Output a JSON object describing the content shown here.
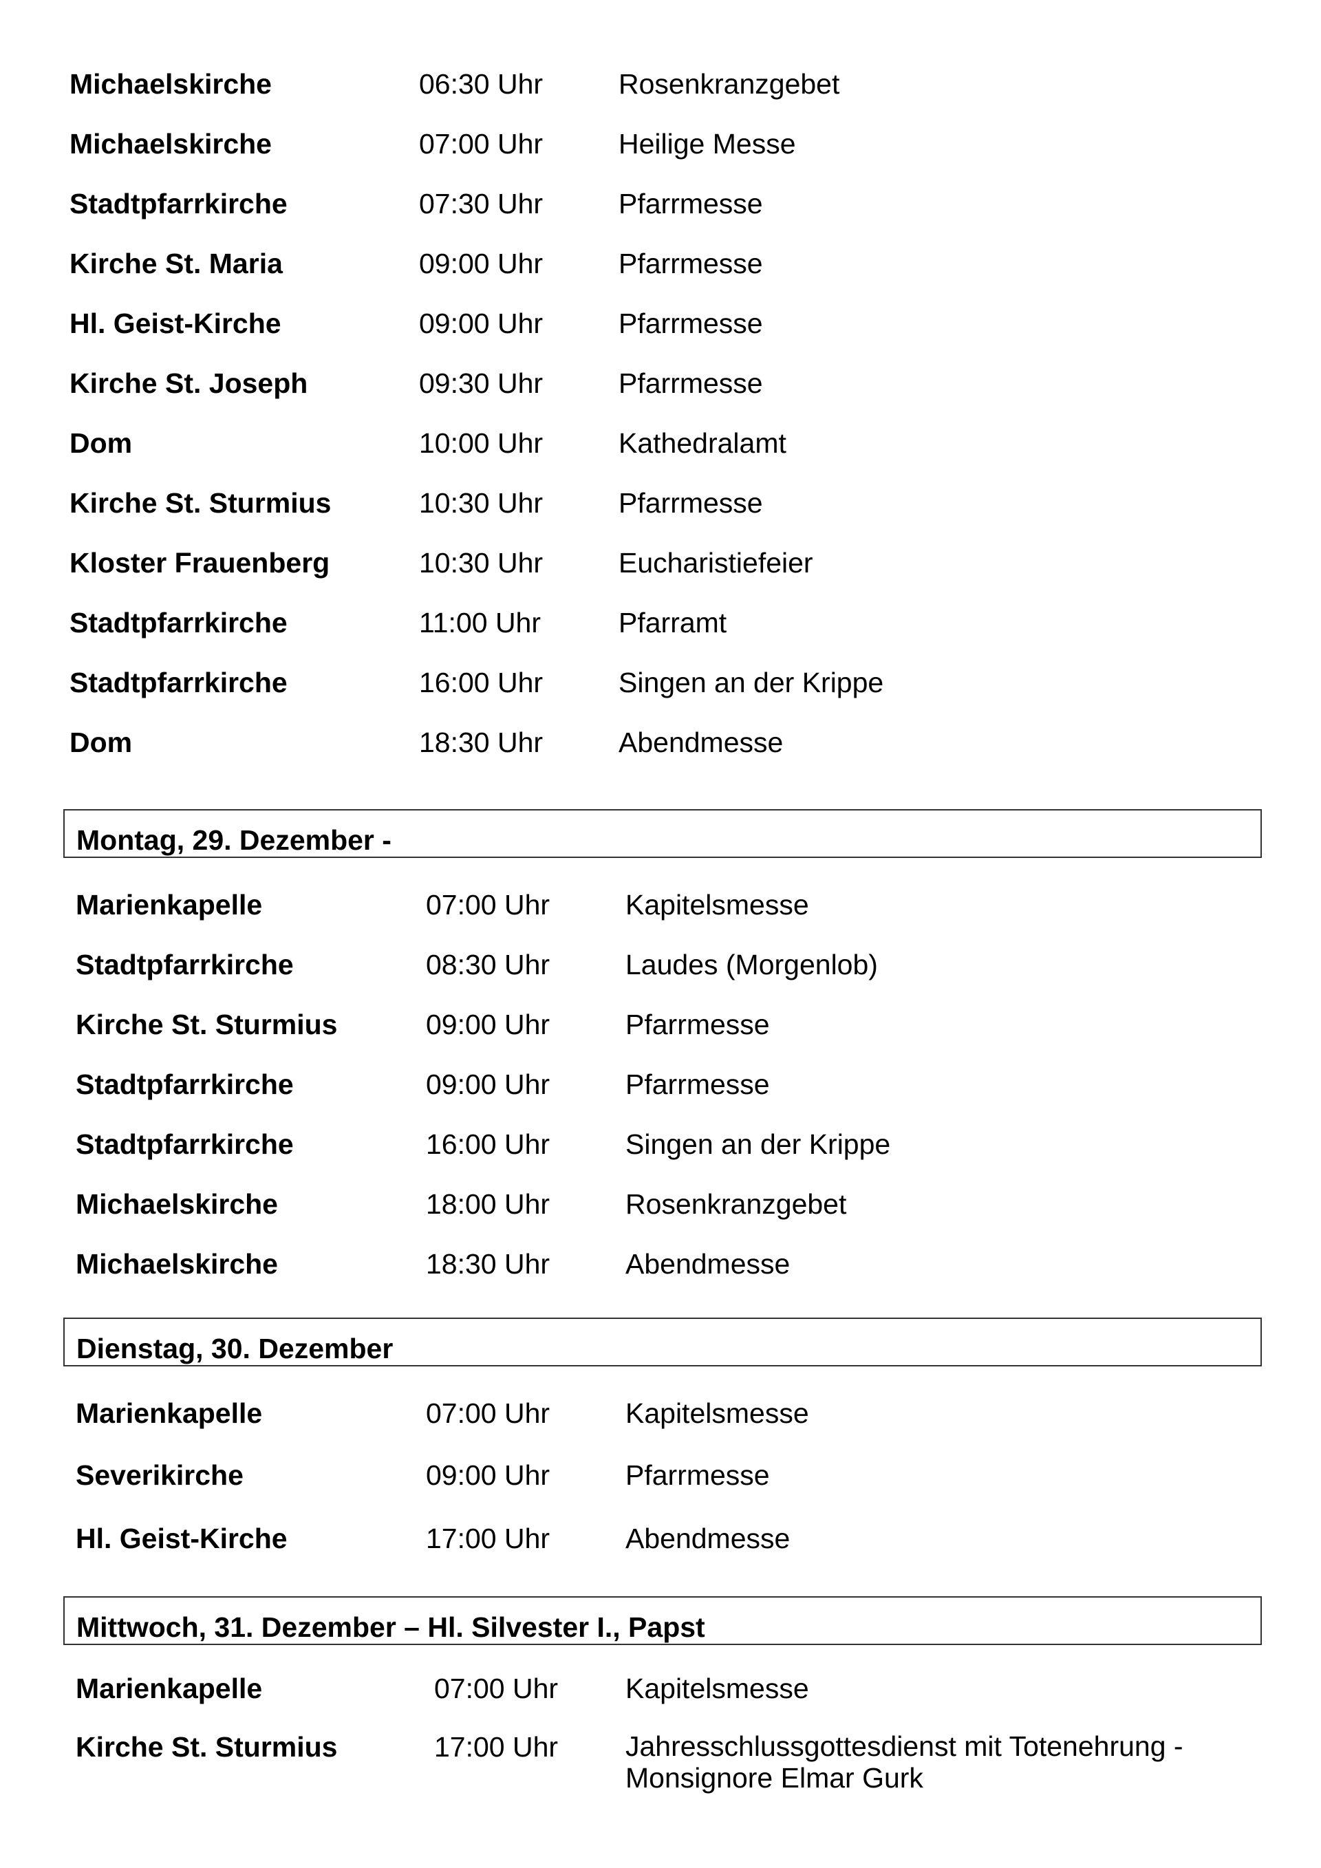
{
  "sections": [
    {
      "title": "",
      "entries": [
        {
          "place": "Michaelskirche",
          "time": "06:30 Uhr",
          "service": "Rosenkranzgebet"
        },
        {
          "place": "Michaelskirche",
          "time": "07:00 Uhr",
          "service": "Heilige Messe"
        },
        {
          "place": "Stadtpfarrkirche",
          "time": "07:30 Uhr",
          "service": "Pfarrmesse"
        },
        {
          "place": "Kirche St. Maria",
          "time": "09:00 Uhr",
          "service": "Pfarrmesse"
        },
        {
          "place": "Hl. Geist-Kirche",
          "time": "09:00 Uhr",
          "service": "Pfarrmesse"
        },
        {
          "place": "Kirche St. Joseph",
          "time": "09:30 Uhr",
          "service": "Pfarrmesse"
        },
        {
          "place": "Dom",
          "time": "10:00 Uhr",
          "service": "Kathedralamt"
        },
        {
          "place": "Kirche St. Sturmius",
          "time": "10:30 Uhr",
          "service": "Pfarrmesse"
        },
        {
          "place": "Kloster Frauenberg",
          "time": "10:30 Uhr",
          "service": "Eucharistiefeier"
        },
        {
          "place": "Stadtpfarrkirche",
          "time": "11:00 Uhr",
          "service": "Pfarramt"
        },
        {
          "place": "Stadtpfarrkirche",
          "time": "16:00 Uhr",
          "service": "Singen an der Krippe"
        },
        {
          "place": "Dom",
          "time": "18:30 Uhr",
          "service": "Abendmesse"
        }
      ]
    },
    {
      "title": "Montag, 29. Dezember -",
      "entries": [
        {
          "place": "Marienkapelle",
          "time": "07:00 Uhr",
          "service": "Kapitelsmesse"
        },
        {
          "place": "Stadtpfarrkirche",
          "time": "08:30 Uhr",
          "service": "Laudes (Morgenlob)"
        },
        {
          "place": "Kirche St. Sturmius",
          "time": "09:00 Uhr",
          "service": "Pfarrmesse"
        },
        {
          "place": "Stadtpfarrkirche",
          "time": "09:00 Uhr",
          "service": "Pfarrmesse"
        },
        {
          "place": "Stadtpfarrkirche",
          "time": "16:00 Uhr",
          "service": "Singen an der Krippe"
        },
        {
          "place": "Michaelskirche",
          "time": "18:00 Uhr",
          "service": "Rosenkranzgebet"
        },
        {
          "place": "Michaelskirche",
          "time": "18:30 Uhr",
          "service": "Abendmesse"
        }
      ]
    },
    {
      "title": "Dienstag, 30. Dezember",
      "entries": [
        {
          "place": "Marienkapelle",
          "time": "07:00 Uhr",
          "service": "Kapitelsmesse"
        },
        {
          "place": "Severikirche",
          "time": "09:00 Uhr",
          "service": "Pfarrmesse"
        },
        {
          "place": "Hl. Geist-Kirche",
          "time": "17:00 Uhr",
          "service": "Abendmesse"
        }
      ]
    },
    {
      "title": "Mittwoch, 31. Dezember – Hl. Silvester I., Papst",
      "entries": [
        {
          "place": "Marienkapelle",
          "time": "07:00 Uhr",
          "service": "Kapitelsmesse"
        },
        {
          "place": "Kirche St. Sturmius",
          "time": "17:00 Uhr",
          "service": "Jahresschlussgottesdienst mit Totenehrung - Monsignore Elmar Gurk"
        }
      ]
    }
  ]
}
